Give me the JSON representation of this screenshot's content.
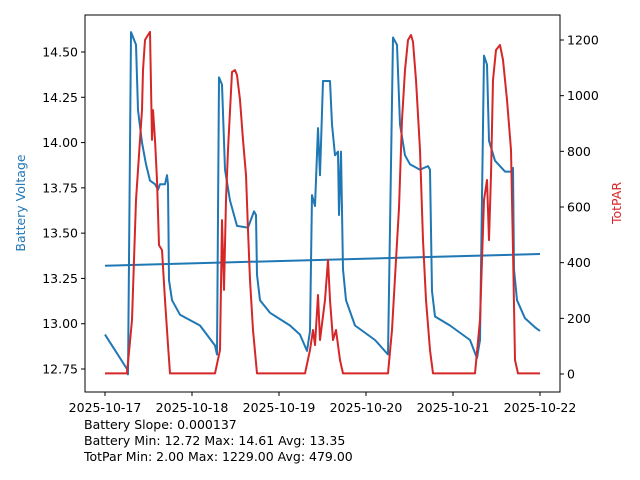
{
  "chart_data": {
    "type": "line",
    "x_ticks": [
      "2025-10-17",
      "2025-10-18",
      "2025-10-19",
      "2025-10-20",
      "2025-10-21",
      "2025-10-22"
    ],
    "x_unit": "days since 2025-10-17",
    "xlim": [
      0,
      5
    ],
    "ylabel_left": "Battery Voltage",
    "ylabel_right": "TotPAR",
    "ylim_left": [
      12.75,
      14.5
    ],
    "yticks_left": [
      "12.75",
      "13.00",
      "13.25",
      "13.50",
      "13.75",
      "14.00",
      "14.25",
      "14.50"
    ],
    "ylim_right": [
      0,
      1200
    ],
    "yticks_right": [
      "0",
      "200",
      "400",
      "600",
      "800",
      "1000",
      "1200"
    ],
    "colors": {
      "battery": "#1f77b4",
      "totpar": "#d62728"
    },
    "series": [
      {
        "name": "Battery Voltage",
        "axis": "left",
        "points": [
          [
            0,
            12.94
          ],
          [
            0.253,
            12.75
          ],
          [
            0.264,
            12.72
          ],
          [
            0.299,
            14.61
          ],
          [
            0.356,
            14.54
          ],
          [
            0.379,
            14.18
          ],
          [
            0.425,
            14.0
          ],
          [
            0.471,
            13.88
          ],
          [
            0.517,
            13.79
          ],
          [
            0.575,
            13.77
          ],
          [
            0.609,
            13.74
          ],
          [
            0.632,
            13.77
          ],
          [
            0.69,
            13.77
          ],
          [
            0.713,
            13.82
          ],
          [
            0.724,
            13.77
          ],
          [
            0.736,
            13.24
          ],
          [
            0.77,
            13.13
          ],
          [
            0.862,
            13.05
          ],
          [
            1.092,
            12.99
          ],
          [
            1.264,
            12.88
          ],
          [
            1.287,
            12.83
          ],
          [
            1.31,
            14.36
          ],
          [
            1.345,
            14.32
          ],
          [
            1.379,
            13.85
          ],
          [
            1.437,
            13.68
          ],
          [
            1.517,
            13.54
          ],
          [
            1.644,
            13.53
          ],
          [
            1.713,
            13.62
          ],
          [
            1.736,
            13.6
          ],
          [
            1.747,
            13.27
          ],
          [
            1.782,
            13.13
          ],
          [
            1.897,
            13.06
          ],
          [
            2.126,
            12.99
          ],
          [
            2.241,
            12.94
          ],
          [
            2.322,
            12.85
          ],
          [
            2.356,
            12.96
          ],
          [
            2.379,
            13.71
          ],
          [
            2.414,
            13.65
          ],
          [
            2.448,
            14.08
          ],
          [
            2.471,
            13.82
          ],
          [
            2.506,
            14.34
          ],
          [
            2.586,
            14.34
          ],
          [
            2.609,
            14.1
          ],
          [
            2.644,
            13.93
          ],
          [
            2.678,
            13.95
          ],
          [
            2.69,
            13.6
          ],
          [
            2.713,
            13.95
          ],
          [
            2.736,
            13.3
          ],
          [
            2.77,
            13.13
          ],
          [
            2.874,
            12.99
          ],
          [
            3.103,
            12.91
          ],
          [
            3.253,
            12.83
          ],
          [
            3.31,
            14.58
          ],
          [
            3.356,
            14.54
          ],
          [
            3.391,
            14.1
          ],
          [
            3.448,
            13.93
          ],
          [
            3.506,
            13.88
          ],
          [
            3.621,
            13.85
          ],
          [
            3.713,
            13.87
          ],
          [
            3.736,
            13.85
          ],
          [
            3.759,
            13.18
          ],
          [
            3.793,
            13.04
          ],
          [
            3.966,
            12.99
          ],
          [
            4.195,
            12.91
          ],
          [
            4.276,
            12.81
          ],
          [
            4.31,
            12.91
          ],
          [
            4.356,
            14.48
          ],
          [
            4.391,
            14.43
          ],
          [
            4.414,
            14.01
          ],
          [
            4.483,
            13.9
          ],
          [
            4.598,
            13.84
          ],
          [
            4.678,
            13.84
          ],
          [
            4.69,
            13.86
          ],
          [
            4.701,
            13.3
          ],
          [
            4.736,
            13.13
          ],
          [
            4.828,
            13.03
          ],
          [
            4.943,
            12.98
          ],
          [
            5.0,
            12.96
          ]
        ]
      },
      {
        "name": "Battery Trend",
        "axis": "left",
        "points": [
          [
            0,
            13.32
          ],
          [
            5,
            13.385
          ]
        ]
      },
      {
        "name": "TotPAR",
        "axis": "right",
        "points": [
          [
            0,
            2
          ],
          [
            0.253,
            2
          ],
          [
            0.31,
            194
          ],
          [
            0.356,
            625
          ],
          [
            0.402,
            841
          ],
          [
            0.425,
            948
          ],
          [
            0.437,
            1092
          ],
          [
            0.46,
            1200
          ],
          [
            0.494,
            1218
          ],
          [
            0.517,
            1229
          ],
          [
            0.54,
            841
          ],
          [
            0.552,
            948
          ],
          [
            0.575,
            841
          ],
          [
            0.598,
            697
          ],
          [
            0.621,
            463
          ],
          [
            0.655,
            445
          ],
          [
            0.69,
            266
          ],
          [
            0.724,
            104
          ],
          [
            0.747,
            2
          ],
          [
            1.264,
            2
          ],
          [
            1.322,
            86
          ],
          [
            1.345,
            553
          ],
          [
            1.368,
            302
          ],
          [
            1.391,
            625
          ],
          [
            1.414,
            805
          ],
          [
            1.46,
            1085
          ],
          [
            1.494,
            1092
          ],
          [
            1.517,
            1074
          ],
          [
            1.552,
            985
          ],
          [
            1.586,
            841
          ],
          [
            1.621,
            715
          ],
          [
            1.644,
            517
          ],
          [
            1.667,
            338
          ],
          [
            1.701,
            158
          ],
          [
            1.747,
            2
          ],
          [
            2.299,
            2
          ],
          [
            2.356,
            86
          ],
          [
            2.391,
            158
          ],
          [
            2.414,
            104
          ],
          [
            2.448,
            284
          ],
          [
            2.471,
            122
          ],
          [
            2.529,
            266
          ],
          [
            2.563,
            410
          ],
          [
            2.586,
            266
          ],
          [
            2.621,
            122
          ],
          [
            2.655,
            158
          ],
          [
            2.701,
            50
          ],
          [
            2.736,
            2
          ],
          [
            3.253,
            2
          ],
          [
            3.299,
            158
          ],
          [
            3.345,
            410
          ],
          [
            3.379,
            596
          ],
          [
            3.414,
            913
          ],
          [
            3.448,
            1092
          ],
          [
            3.483,
            1200
          ],
          [
            3.517,
            1218
          ],
          [
            3.54,
            1193
          ],
          [
            3.575,
            1056
          ],
          [
            3.621,
            805
          ],
          [
            3.655,
            481
          ],
          [
            3.69,
            266
          ],
          [
            3.736,
            86
          ],
          [
            3.77,
            2
          ],
          [
            4.253,
            2
          ],
          [
            4.31,
            194
          ],
          [
            4.356,
            625
          ],
          [
            4.391,
            697
          ],
          [
            4.414,
            481
          ],
          [
            4.437,
            715
          ],
          [
            4.46,
            1056
          ],
          [
            4.494,
            1164
          ],
          [
            4.54,
            1182
          ],
          [
            4.575,
            1128
          ],
          [
            4.621,
            985
          ],
          [
            4.667,
            805
          ],
          [
            4.69,
            445
          ],
          [
            4.713,
            50
          ],
          [
            4.747,
            2
          ],
          [
            5.0,
            2
          ]
        ]
      }
    ],
    "annotations": [
      "Battery Slope: 0.000137",
      "Battery Min: 12.72 Max: 14.61 Avg: 13.35",
      "TotPar Min: 2.00 Max: 1229.00 Avg: 479.00"
    ]
  }
}
